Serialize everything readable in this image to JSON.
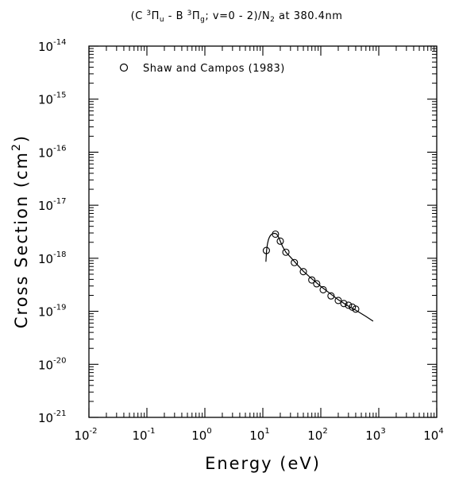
{
  "chart_data": {
    "type": "scatter",
    "title": "(C ³Πu - B ³Πg; v=0 - 2)/N₂ at 380.4nm",
    "xlabel": "Energy (eV)",
    "ylabel": "Cross Section (cm²)",
    "x_scale": "log",
    "y_scale": "log",
    "xlim": [
      0.01,
      10000
    ],
    "ylim": [
      1e-21,
      1e-14
    ],
    "x_ticks": [
      {
        "value": 0.01,
        "base": "10",
        "exp": "-2"
      },
      {
        "value": 0.1,
        "base": "10",
        "exp": "-1"
      },
      {
        "value": 1,
        "base": "10",
        "exp": "0"
      },
      {
        "value": 10,
        "base": "10",
        "exp": "1"
      },
      {
        "value": 100,
        "base": "10",
        "exp": "2"
      },
      {
        "value": 1000,
        "base": "10",
        "exp": "3"
      },
      {
        "value": 10000,
        "base": "10",
        "exp": "4"
      }
    ],
    "y_ticks": [
      {
        "value": 1e-21,
        "base": "10",
        "exp": "-21"
      },
      {
        "value": 1e-20,
        "base": "10",
        "exp": "-20"
      },
      {
        "value": 1e-19,
        "base": "10",
        "exp": "-19"
      },
      {
        "value": 1e-18,
        "base": "10",
        "exp": "-18"
      },
      {
        "value": 1e-17,
        "base": "10",
        "exp": "-17"
      },
      {
        "value": 1e-16,
        "base": "10",
        "exp": "-16"
      },
      {
        "value": 1e-15,
        "base": "10",
        "exp": "-15"
      },
      {
        "value": 1e-14,
        "base": "10",
        "exp": "-14"
      }
    ],
    "legend": {
      "position": "top-left",
      "entries": [
        {
          "label": "Shaw and Campos (1983)",
          "marker": "open-circle"
        }
      ]
    },
    "series": [
      {
        "name": "Shaw and Campos (1983)",
        "kind": "points",
        "marker": "open-circle",
        "x": [
          11.5,
          16.5,
          20,
          25,
          35,
          50,
          70,
          85,
          110,
          150,
          200,
          250,
          300,
          350,
          400
        ],
        "y": [
          1.4e-18,
          2.85e-18,
          2.1e-18,
          1.3e-18,
          8.3e-19,
          5.6e-19,
          3.9e-19,
          3.3e-19,
          2.55e-19,
          1.95e-19,
          1.6e-19,
          1.4e-19,
          1.3e-19,
          1.2e-19,
          1.1e-19
        ]
      },
      {
        "kind": "line",
        "x": [
          11.3,
          11.6,
          12,
          12.5,
          13,
          13.5,
          14,
          15,
          16,
          17,
          18,
          19,
          20,
          22,
          25,
          30,
          40,
          50,
          70,
          100,
          150,
          200,
          300,
          400,
          600,
          800
        ],
        "y": [
          8.6e-19,
          1.4e-18,
          1.85e-18,
          2.25e-18,
          2.5e-18,
          2.68e-18,
          2.8e-18,
          2.92e-18,
          2.95e-18,
          2.9e-18,
          2.7e-18,
          2.4e-18,
          2.1e-18,
          1.65e-18,
          1.3e-18,
          1.05e-18,
          7.4e-19,
          5.7e-19,
          4.1e-19,
          2.95e-19,
          2.1e-19,
          1.65e-19,
          1.25e-19,
          1.05e-19,
          8e-20,
          6.5e-20
        ]
      }
    ]
  }
}
